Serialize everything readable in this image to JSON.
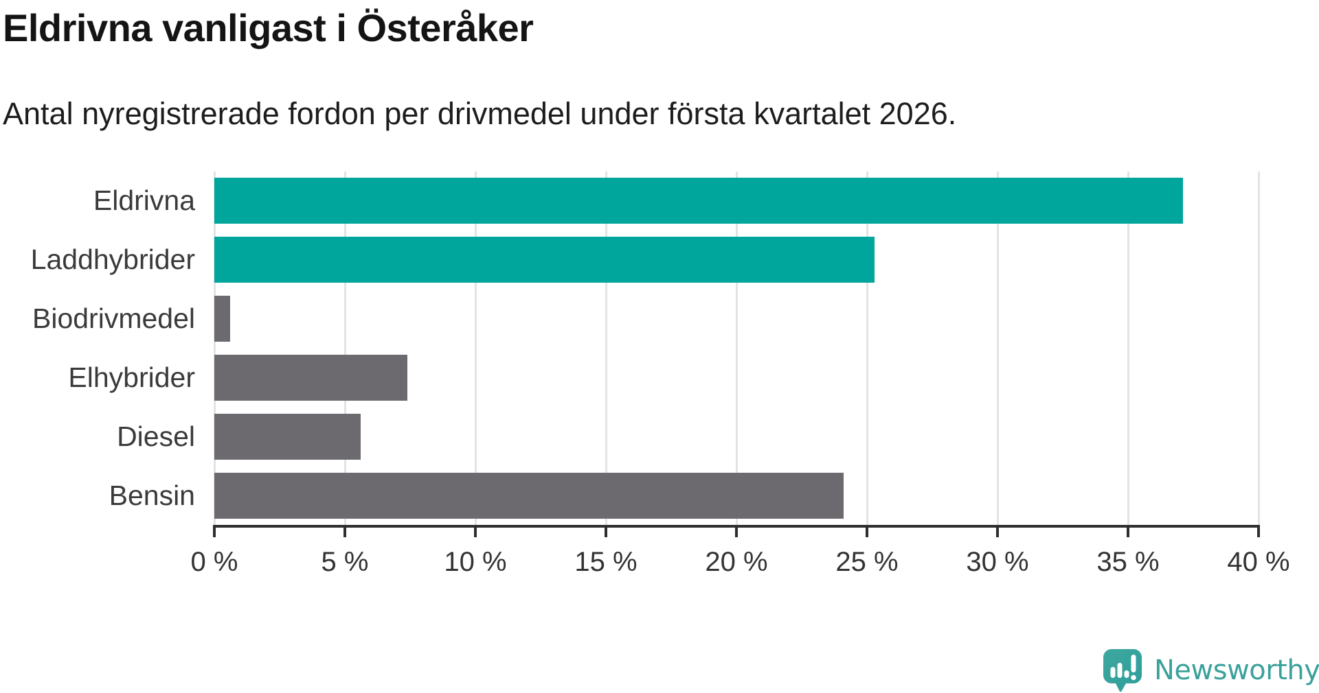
{
  "chart_data": {
    "type": "bar",
    "orientation": "horizontal",
    "title": "Eldrivna vanligast i Österåker",
    "subtitle": "Antal nyregistrerade fordon per drivmedel under första kvartalet 2026.",
    "categories": [
      "Eldrivna",
      "Laddhybrider",
      "Biodrivmedel",
      "Elhybrider",
      "Diesel",
      "Bensin"
    ],
    "values": [
      37.1,
      25.3,
      0.6,
      7.4,
      5.6,
      24.1
    ],
    "unit": "%",
    "bar_colors": [
      "#00a59b",
      "#00a59b",
      "#6c6a6e",
      "#6c6a6e",
      "#6c6a6e",
      "#6c6a6e"
    ],
    "xlim": [
      0,
      40
    ],
    "x_ticks": [
      0,
      5,
      10,
      15,
      20,
      25,
      30,
      35,
      40
    ],
    "x_tick_labels": [
      "0 %",
      "5 %",
      "10 %",
      "15 %",
      "20 %",
      "25 %",
      "30 %",
      "35 %",
      "40 %"
    ],
    "grid": "vertical-light",
    "legend": false
  },
  "colors": {
    "accent_teal": "#00a59b",
    "bar_gray": "#6c6a6e",
    "axis": "#2e2e2e",
    "gridline": "#e3e3e3",
    "title_text": "#141414",
    "label_text": "#3a3a3a",
    "logo_teal": "#3ba19b"
  },
  "logo": {
    "text": "Newsworthy",
    "icon": "newsworthy-speech-bubble-bar-chart-icon"
  }
}
